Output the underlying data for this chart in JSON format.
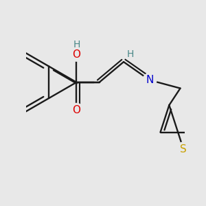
{
  "bg": "#e8e8e8",
  "bc": "#1a1a1a",
  "bw": 1.7,
  "dbo": 0.055,
  "colors": {
    "O": "#dd0000",
    "N": "#0000cc",
    "S": "#c8a000",
    "H": "#4a8888"
  },
  "fs": 11,
  "fsh": 10
}
